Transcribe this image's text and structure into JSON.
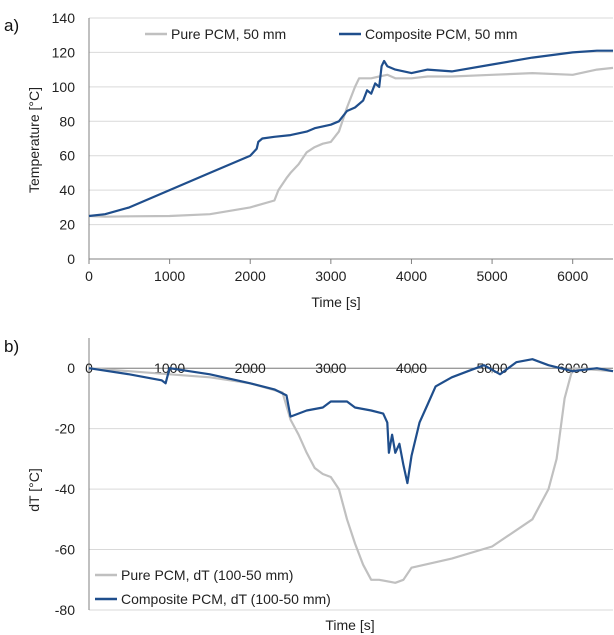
{
  "chart_data": [
    {
      "type": "line",
      "panel_label": "a)",
      "xlabel": "Time [s]",
      "ylabel": "Temperature [°C]",
      "xlim": [
        0,
        6500
      ],
      "ylim": [
        0,
        140
      ],
      "xticks": [
        0,
        1000,
        2000,
        3000,
        4000,
        5000,
        6000
      ],
      "yticks": [
        0,
        20,
        40,
        60,
        80,
        100,
        120,
        140
      ],
      "grid": "horizontal",
      "legend": "top",
      "series": [
        {
          "name": "Pure PCM, 50 mm",
          "color": "#c0c0c0",
          "x": [
            0,
            200,
            500,
            1000,
            1500,
            2000,
            2300,
            2350,
            2450,
            2500,
            2600,
            2700,
            2800,
            2900,
            3000,
            3100,
            3200,
            3300,
            3350,
            3400,
            3500,
            3600,
            3700,
            3800,
            4000,
            4200,
            4500,
            5000,
            5500,
            6000,
            6300,
            6500
          ],
          "y": [
            25,
            24.6,
            24.8,
            25,
            26,
            30,
            34,
            40,
            47,
            50,
            55,
            62,
            65,
            67,
            68,
            74,
            88,
            100,
            105,
            105,
            105,
            106,
            107,
            105,
            105,
            106,
            106,
            107,
            108,
            107,
            110,
            111
          ]
        },
        {
          "name": "Composite PCM, 50 mm",
          "color": "#1f4e8c",
          "x": [
            0,
            200,
            500,
            1000,
            1500,
            2000,
            2080,
            2100,
            2150,
            2300,
            2500,
            2700,
            2800,
            3000,
            3100,
            3200,
            3300,
            3400,
            3450,
            3500,
            3550,
            3600,
            3630,
            3660,
            3700,
            3800,
            4000,
            4200,
            4500,
            5000,
            5500,
            6000,
            6300,
            6500
          ],
          "y": [
            25,
            26,
            30,
            40,
            50,
            60,
            64,
            68,
            70,
            71,
            72,
            74,
            76,
            78,
            80,
            86,
            88,
            92,
            98,
            96,
            102,
            100,
            112,
            115,
            112,
            110,
            108,
            110,
            109,
            113,
            117,
            120,
            121,
            121
          ]
        }
      ]
    },
    {
      "type": "line",
      "panel_label": "b)",
      "xlabel": "Time [s]",
      "ylabel": "dT [°C]",
      "xlim": [
        0,
        6500
      ],
      "ylim": [
        -80,
        10
      ],
      "xticks": [
        0,
        1000,
        2000,
        3000,
        4000,
        5000,
        6000
      ],
      "yticks": [
        -80,
        -60,
        -40,
        -20,
        0
      ],
      "grid": "horizontal",
      "legend": "bottom-left",
      "series": [
        {
          "name": "Pure PCM, dT (100-50 mm)",
          "color": "#c0c0c0",
          "x": [
            0,
            500,
            1000,
            1500,
            2000,
            2400,
            2500,
            2600,
            2700,
            2800,
            2900,
            3000,
            3100,
            3200,
            3300,
            3400,
            3500,
            3600,
            3800,
            3900,
            4000,
            4500,
            5000,
            5500,
            5700,
            5800,
            5900,
            6000,
            6500
          ],
          "y": [
            0,
            -1,
            -2,
            -3,
            -5,
            -8,
            -17,
            -22,
            -28,
            -33,
            -35,
            -36,
            -40,
            -50,
            -58,
            -65,
            -70,
            -70,
            -71,
            -70,
            -66,
            -63,
            -59,
            -50,
            -40,
            -30,
            -10,
            0,
            -1
          ]
        },
        {
          "name": "Composite PCM, dT (100-50 mm)",
          "color": "#1f4e8c",
          "x": [
            0,
            500,
            900,
            950,
            1000,
            1500,
            2000,
            2300,
            2450,
            2500,
            2700,
            2900,
            3000,
            3200,
            3300,
            3500,
            3650,
            3700,
            3720,
            3760,
            3800,
            3850,
            3900,
            3950,
            4000,
            4100,
            4200,
            4300,
            4500,
            4700,
            4900,
            5100,
            5300,
            5500,
            5700,
            6000,
            6300,
            6500
          ],
          "y": [
            0,
            -2,
            -4,
            -5,
            0,
            -2,
            -5,
            -7,
            -9,
            -16,
            -14,
            -13,
            -11,
            -11,
            -13,
            -14,
            -15,
            -18,
            -28,
            -22,
            -28,
            -25,
            -32,
            -38,
            -29,
            -18,
            -12,
            -6,
            -3,
            -1,
            1,
            -2,
            2,
            3,
            1,
            -1,
            0,
            -1
          ]
        }
      ]
    }
  ]
}
